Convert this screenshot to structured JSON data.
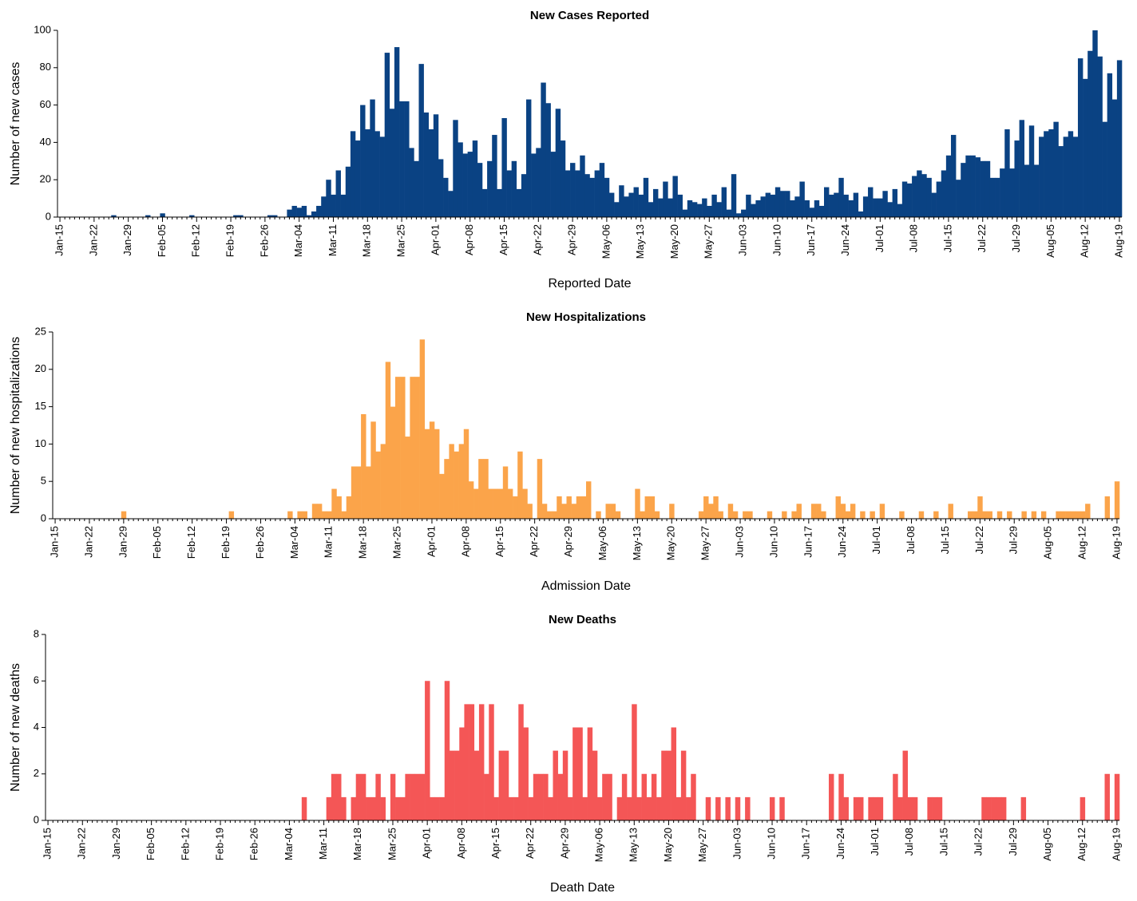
{
  "chart_data": [
    {
      "type": "bar",
      "title": "New Cases Reported",
      "x_label": "Reported Date",
      "y_label": "Number of new cases",
      "color": "#0a4283",
      "categories": [
        "Jan-15",
        null,
        null,
        null,
        null,
        null,
        null,
        "Jan-22",
        null,
        null,
        null,
        null,
        null,
        null,
        "Jan-29",
        null,
        null,
        null,
        null,
        null,
        null,
        "Feb-05",
        null,
        null,
        null,
        null,
        null,
        null,
        "Feb-12",
        null,
        null,
        null,
        null,
        null,
        null,
        "Feb-19",
        null,
        null,
        null,
        null,
        null,
        null,
        "Feb-26",
        null,
        null,
        null,
        null,
        null,
        null,
        "Mar-04",
        null,
        null,
        null,
        null,
        null,
        null,
        "Mar-11",
        null,
        null,
        null,
        null,
        null,
        null,
        "Mar-18",
        null,
        null,
        null,
        null,
        null,
        null,
        "Mar-25",
        null,
        null,
        null,
        null,
        null,
        null,
        "Apr-01",
        null,
        null,
        null,
        null,
        null,
        null,
        "Apr-08",
        null,
        null,
        null,
        null,
        null,
        null,
        "Apr-15",
        null,
        null,
        null,
        null,
        null,
        null,
        "Apr-22",
        null,
        null,
        null,
        null,
        null,
        null,
        "Apr-29",
        null,
        null,
        null,
        null,
        null,
        null,
        "May-06",
        null,
        null,
        null,
        null,
        null,
        null,
        "May-13",
        null,
        null,
        null,
        null,
        null,
        null,
        "May-20",
        null,
        null,
        null,
        null,
        null,
        null,
        "May-27",
        null,
        null,
        null,
        null,
        null,
        null,
        "Jun-03",
        null,
        null,
        null,
        null,
        null,
        null,
        "Jun-10",
        null,
        null,
        null,
        null,
        null,
        null,
        "Jun-17",
        null,
        null,
        null,
        null,
        null,
        null,
        "Jun-24",
        null,
        null,
        null,
        null,
        null,
        null,
        "Jul-01",
        null,
        null,
        null,
        null,
        null,
        null,
        "Jul-08",
        null,
        null,
        null,
        null,
        null,
        null,
        "Jul-15",
        null,
        null,
        null,
        null,
        null,
        null,
        "Jul-22",
        null,
        null,
        null,
        null,
        null,
        null,
        "Jul-29",
        null,
        null,
        null,
        null,
        null,
        null,
        "Aug-05",
        null,
        null,
        null,
        null,
        null,
        null,
        "Aug-12",
        null,
        null,
        null,
        null,
        null,
        null,
        "Aug-19"
      ],
      "values": [
        0,
        0,
        0,
        0,
        0,
        0,
        0,
        0,
        0,
        0,
        0,
        1,
        0,
        0,
        0,
        0,
        0,
        0,
        1,
        0,
        0,
        2,
        0,
        0,
        0,
        0,
        0,
        1,
        0,
        0,
        0,
        0,
        0,
        0,
        0,
        0,
        1,
        1,
        0,
        0,
        0,
        0,
        0,
        1,
        1,
        0,
        0,
        4,
        6,
        5,
        6,
        1,
        3,
        6,
        11,
        20,
        12,
        25,
        12,
        27,
        46,
        41,
        60,
        47,
        63,
        46,
        43,
        88,
        58,
        91,
        62,
        62,
        37,
        30,
        82,
        56,
        47,
        55,
        31,
        21,
        14,
        52,
        40,
        34,
        35,
        41,
        29,
        15,
        30,
        44,
        15,
        53,
        25,
        30,
        15,
        23,
        63,
        34,
        37,
        72,
        61,
        35,
        58,
        41,
        25,
        29,
        25,
        33,
        23,
        21,
        25,
        29,
        21,
        13,
        8,
        17,
        11,
        13,
        16,
        12,
        21,
        8,
        15,
        10,
        19,
        10,
        22,
        12,
        4,
        9,
        8,
        7,
        10,
        6,
        12,
        8,
        16,
        4,
        23,
        2,
        4,
        12,
        7,
        9,
        11,
        13,
        12,
        16,
        14,
        14,
        9,
        11,
        19,
        9,
        5,
        9,
        6,
        16,
        12,
        13,
        21,
        12,
        9,
        13,
        3,
        11,
        16,
        10,
        10,
        14,
        8,
        15,
        7,
        19,
        18,
        22,
        25,
        23,
        21,
        13,
        19,
        25,
        33,
        44,
        20,
        29,
        33,
        33,
        32,
        30,
        30,
        21,
        21,
        26,
        47,
        26,
        41,
        52,
        28,
        49,
        28,
        43,
        46,
        47,
        51,
        38,
        43,
        46,
        43,
        85,
        74,
        89,
        100,
        86,
        51,
        77,
        63,
        84
      ],
      "ylim": [
        0,
        100
      ],
      "yticks": [
        0,
        20,
        40,
        60,
        80,
        100
      ]
    },
    {
      "type": "bar",
      "title": "New Hospitalizations",
      "x_label": "Admission Date",
      "y_label": "Number of new hospitalizations",
      "color": "#fba44a",
      "categories": [
        "Jan-15",
        null,
        null,
        null,
        null,
        null,
        null,
        "Jan-22",
        null,
        null,
        null,
        null,
        null,
        null,
        "Jan-29",
        null,
        null,
        null,
        null,
        null,
        null,
        "Feb-05",
        null,
        null,
        null,
        null,
        null,
        null,
        "Feb-12",
        null,
        null,
        null,
        null,
        null,
        null,
        "Feb-19",
        null,
        null,
        null,
        null,
        null,
        null,
        "Feb-26",
        null,
        null,
        null,
        null,
        null,
        null,
        "Mar-04",
        null,
        null,
        null,
        null,
        null,
        null,
        "Mar-11",
        null,
        null,
        null,
        null,
        null,
        null,
        "Mar-18",
        null,
        null,
        null,
        null,
        null,
        null,
        "Mar-25",
        null,
        null,
        null,
        null,
        null,
        null,
        "Apr-01",
        null,
        null,
        null,
        null,
        null,
        null,
        "Apr-08",
        null,
        null,
        null,
        null,
        null,
        null,
        "Apr-15",
        null,
        null,
        null,
        null,
        null,
        null,
        "Apr-22",
        null,
        null,
        null,
        null,
        null,
        null,
        "Apr-29",
        null,
        null,
        null,
        null,
        null,
        null,
        "May-06",
        null,
        null,
        null,
        null,
        null,
        null,
        "May-13",
        null,
        null,
        null,
        null,
        null,
        null,
        "May-20",
        null,
        null,
        null,
        null,
        null,
        null,
        "May-27",
        null,
        null,
        null,
        null,
        null,
        null,
        "Jun-03",
        null,
        null,
        null,
        null,
        null,
        null,
        "Jun-10",
        null,
        null,
        null,
        null,
        null,
        null,
        "Jun-17",
        null,
        null,
        null,
        null,
        null,
        null,
        "Jun-24",
        null,
        null,
        null,
        null,
        null,
        null,
        "Jul-01",
        null,
        null,
        null,
        null,
        null,
        null,
        "Jul-08",
        null,
        null,
        null,
        null,
        null,
        null,
        "Jul-15",
        null,
        null,
        null,
        null,
        null,
        null,
        "Jul-22",
        null,
        null,
        null,
        null,
        null,
        null,
        "Jul-29",
        null,
        null,
        null,
        null,
        null,
        null,
        "Aug-05",
        null,
        null,
        null,
        null,
        null,
        null,
        "Aug-12",
        null,
        null,
        null,
        null,
        null,
        null,
        "Aug-19"
      ],
      "values": [
        0,
        0,
        0,
        0,
        0,
        0,
        0,
        0,
        0,
        0,
        0,
        0,
        0,
        0,
        1,
        0,
        0,
        0,
        0,
        0,
        0,
        0,
        0,
        0,
        0,
        0,
        0,
        0,
        0,
        0,
        0,
        0,
        0,
        0,
        0,
        0,
        1,
        0,
        0,
        0,
        0,
        0,
        0,
        0,
        0,
        0,
        0,
        0,
        1,
        0,
        1,
        1,
        0,
        2,
        2,
        1,
        1,
        4,
        3,
        1,
        3,
        7,
        7,
        14,
        7,
        13,
        9,
        10,
        21,
        15,
        19,
        19,
        11,
        19,
        19,
        24,
        12,
        13,
        12,
        6,
        8,
        10,
        9,
        10,
        12,
        5,
        4,
        8,
        8,
        4,
        4,
        4,
        7,
        4,
        3,
        9,
        4,
        2,
        0,
        8,
        2,
        1,
        1,
        3,
        2,
        3,
        2,
        3,
        3,
        5,
        0,
        1,
        0,
        2,
        2,
        1,
        0,
        0,
        0,
        4,
        1,
        3,
        3,
        1,
        0,
        0,
        2,
        0,
        0,
        0,
        0,
        0,
        1,
        3,
        2,
        3,
        1,
        0,
        2,
        1,
        0,
        1,
        1,
        0,
        0,
        0,
        1,
        0,
        0,
        1,
        0,
        1,
        2,
        0,
        0,
        2,
        2,
        1,
        0,
        0,
        3,
        2,
        1,
        2,
        0,
        1,
        0,
        1,
        0,
        2,
        0,
        0,
        0,
        1,
        0,
        0,
        0,
        1,
        0,
        0,
        1,
        0,
        0,
        2,
        0,
        0,
        0,
        1,
        1,
        3,
        1,
        1,
        0,
        1,
        0,
        1,
        0,
        0,
        1,
        0,
        1,
        0,
        1,
        0,
        0,
        1,
        1,
        1,
        1,
        1,
        1,
        2,
        0,
        0,
        0,
        3,
        0,
        5
      ],
      "ylim": [
        0,
        25
      ],
      "yticks": [
        0,
        5,
        10,
        15,
        20,
        25
      ]
    },
    {
      "type": "bar",
      "title": "New Deaths",
      "x_label": "Death Date",
      "y_label": "Number of new deaths",
      "color": "#f45656",
      "categories": [
        "Jan-15",
        null,
        null,
        null,
        null,
        null,
        null,
        "Jan-22",
        null,
        null,
        null,
        null,
        null,
        null,
        "Jan-29",
        null,
        null,
        null,
        null,
        null,
        null,
        "Feb-05",
        null,
        null,
        null,
        null,
        null,
        null,
        "Feb-12",
        null,
        null,
        null,
        null,
        null,
        null,
        "Feb-19",
        null,
        null,
        null,
        null,
        null,
        null,
        "Feb-26",
        null,
        null,
        null,
        null,
        null,
        null,
        "Mar-04",
        null,
        null,
        null,
        null,
        null,
        null,
        "Mar-11",
        null,
        null,
        null,
        null,
        null,
        null,
        "Mar-18",
        null,
        null,
        null,
        null,
        null,
        null,
        "Mar-25",
        null,
        null,
        null,
        null,
        null,
        null,
        "Apr-01",
        null,
        null,
        null,
        null,
        null,
        null,
        "Apr-08",
        null,
        null,
        null,
        null,
        null,
        null,
        "Apr-15",
        null,
        null,
        null,
        null,
        null,
        null,
        "Apr-22",
        null,
        null,
        null,
        null,
        null,
        null,
        "Apr-29",
        null,
        null,
        null,
        null,
        null,
        null,
        "May-06",
        null,
        null,
        null,
        null,
        null,
        null,
        "May-13",
        null,
        null,
        null,
        null,
        null,
        null,
        "May-20",
        null,
        null,
        null,
        null,
        null,
        null,
        "May-27",
        null,
        null,
        null,
        null,
        null,
        null,
        "Jun-03",
        null,
        null,
        null,
        null,
        null,
        null,
        "Jun-10",
        null,
        null,
        null,
        null,
        null,
        null,
        "Jun-17",
        null,
        null,
        null,
        null,
        null,
        null,
        "Jun-24",
        null,
        null,
        null,
        null,
        null,
        null,
        "Jul-01",
        null,
        null,
        null,
        null,
        null,
        null,
        "Jul-08",
        null,
        null,
        null,
        null,
        null,
        null,
        "Jul-15",
        null,
        null,
        null,
        null,
        null,
        null,
        "Jul-22",
        null,
        null,
        null,
        null,
        null,
        null,
        "Jul-29",
        null,
        null,
        null,
        null,
        null,
        null,
        "Aug-05",
        null,
        null,
        null,
        null,
        null,
        null,
        "Aug-12",
        null,
        null,
        null,
        null,
        null,
        null,
        "Aug-19"
      ],
      "values": [
        0,
        0,
        0,
        0,
        0,
        0,
        0,
        0,
        0,
        0,
        0,
        0,
        0,
        0,
        0,
        0,
        0,
        0,
        0,
        0,
        0,
        0,
        0,
        0,
        0,
        0,
        0,
        0,
        0,
        0,
        0,
        0,
        0,
        0,
        0,
        0,
        0,
        0,
        0,
        0,
        0,
        0,
        0,
        0,
        0,
        0,
        0,
        0,
        0,
        0,
        0,
        0,
        1,
        0,
        0,
        0,
        0,
        1,
        2,
        2,
        1,
        0,
        1,
        2,
        2,
        1,
        1,
        2,
        1,
        0,
        2,
        1,
        1,
        2,
        2,
        2,
        2,
        6,
        1,
        1,
        1,
        6,
        3,
        3,
        4,
        5,
        5,
        3,
        5,
        2,
        5,
        1,
        3,
        3,
        1,
        1,
        5,
        4,
        1,
        2,
        2,
        2,
        1,
        3,
        2,
        3,
        1,
        4,
        4,
        1,
        4,
        3,
        1,
        2,
        2,
        0,
        1,
        2,
        1,
        5,
        1,
        2,
        1,
        2,
        1,
        3,
        3,
        4,
        1,
        3,
        1,
        2,
        0,
        0,
        1,
        0,
        1,
        0,
        1,
        0,
        1,
        0,
        1,
        0,
        0,
        0,
        0,
        1,
        0,
        1,
        0,
        0,
        0,
        0,
        0,
        0,
        0,
        0,
        0,
        2,
        0,
        2,
        1,
        0,
        1,
        1,
        0,
        1,
        1,
        1,
        0,
        0,
        2,
        1,
        3,
        1,
        1,
        0,
        0,
        1,
        1,
        1,
        0,
        0,
        0,
        0,
        0,
        0,
        0,
        0,
        1,
        1,
        1,
        1,
        1,
        0,
        0,
        0,
        1,
        0,
        0,
        0,
        0,
        0,
        0,
        0,
        0,
        0,
        0,
        0,
        1,
        0,
        0,
        0,
        0,
        2,
        0,
        2
      ],
      "ylim": [
        0,
        8
      ],
      "yticks": [
        0,
        2,
        4,
        6,
        8
      ]
    }
  ]
}
